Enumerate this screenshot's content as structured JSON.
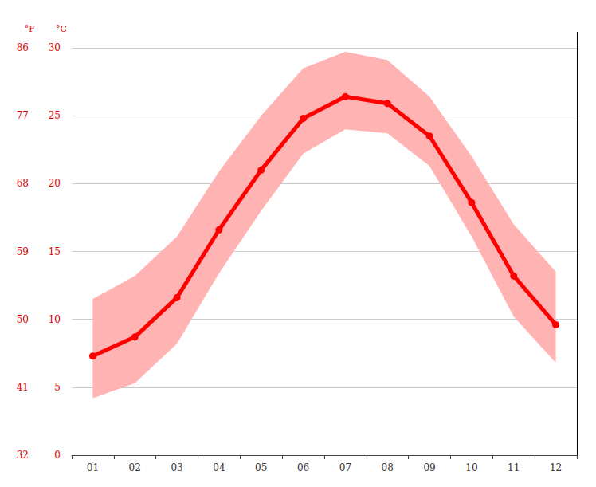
{
  "chart_data": {
    "type": "line",
    "categories": [
      "01",
      "02",
      "03",
      "04",
      "05",
      "06",
      "07",
      "08",
      "09",
      "10",
      "11",
      "12"
    ],
    "series": [
      {
        "type": "band",
        "color": "#ffb3b3",
        "low": [
          4.2,
          5.3,
          8.2,
          13.4,
          18.0,
          22.2,
          24.0,
          23.7,
          21.3,
          16.1,
          10.2,
          6.8
        ],
        "high": [
          11.5,
          13.2,
          16.1,
          20.9,
          25.0,
          28.5,
          29.7,
          29.1,
          26.4,
          22.0,
          17.0,
          13.5
        ]
      },
      {
        "type": "line",
        "color": "#ff0000",
        "marker": "circle",
        "values": [
          7.3,
          8.7,
          11.6,
          16.6,
          21.0,
          24.8,
          26.4,
          25.9,
          23.5,
          18.6,
          13.2,
          9.6
        ]
      }
    ],
    "y_label": "°C",
    "ylim": [
      0,
      30
    ],
    "yticks": [
      0,
      5,
      10,
      15,
      20,
      25,
      30
    ],
    "y2_label": "°F",
    "y2lim": [
      32,
      86
    ],
    "y2ticks": [
      32,
      41,
      50,
      59,
      68,
      77,
      86
    ],
    "grid": true
  }
}
